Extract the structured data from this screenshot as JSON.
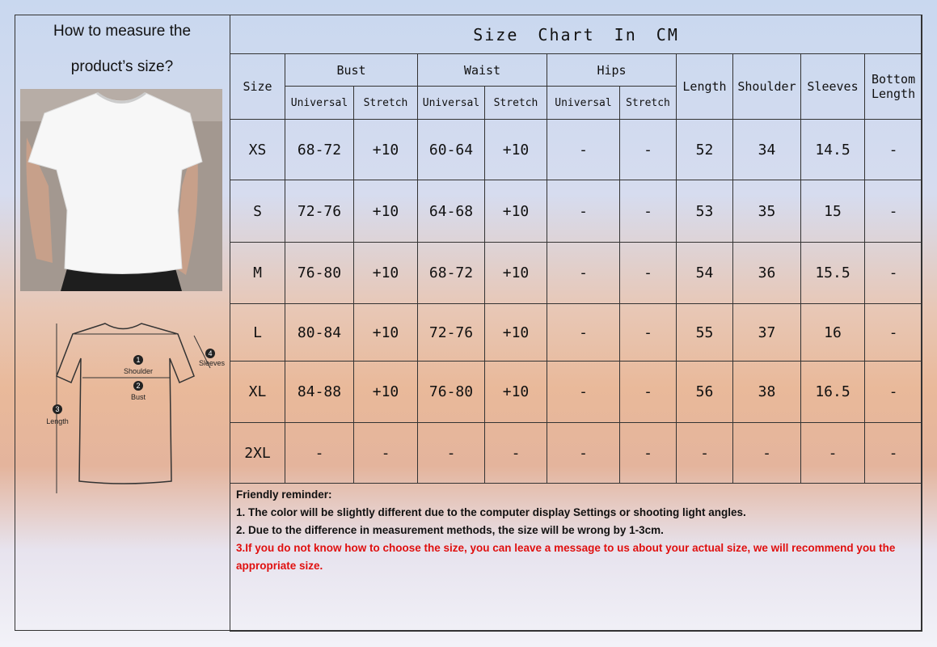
{
  "left": {
    "title_line1": "How to measure the",
    "title_line2": "product’s size?",
    "diagram": {
      "shoulder": "Shoulder",
      "bust": "Bust",
      "length": "Length",
      "sleeves": "Sleeves",
      "n1": "1",
      "n2": "2",
      "n3": "3",
      "n4": "4"
    }
  },
  "table": {
    "title": "Size Chart In CM",
    "headers": {
      "size": "Size",
      "bust": "Bust",
      "waist": "Waist",
      "hips": "Hips",
      "length": "Length",
      "shoulder": "Shoulder",
      "sleeves": "Sleeves",
      "bottom_length": "Bottom Length",
      "universal": "Universal",
      "stretch": "Stretch"
    },
    "rows": [
      [
        "XS",
        "68-72",
        "+10",
        "60-64",
        "+10",
        "-",
        "-",
        "52",
        "34",
        "14.5",
        "-"
      ],
      [
        "S",
        "72-76",
        "+10",
        "64-68",
        "+10",
        "-",
        "-",
        "53",
        "35",
        "15",
        "-"
      ],
      [
        "M",
        "76-80",
        "+10",
        "68-72",
        "+10",
        "-",
        "-",
        "54",
        "36",
        "15.5",
        "-"
      ],
      [
        "L",
        "80-84",
        "+10",
        "72-76",
        "+10",
        "-",
        "-",
        "55",
        "37",
        "16",
        "-"
      ],
      [
        "XL",
        "84-88",
        "+10",
        "76-80",
        "+10",
        "-",
        "-",
        "56",
        "38",
        "16.5",
        "-"
      ],
      [
        "2XL",
        "-",
        "-",
        "-",
        "-",
        "-",
        "-",
        "-",
        "-",
        "-",
        "-"
      ]
    ]
  },
  "notes": {
    "heading": "Friendly reminder:",
    "line1": "1. The color will be slightly different due to the computer display Settings or shooting light angles.",
    "line2": "2. Due to the difference in measurement methods, the size will be wrong by 1-3cm.",
    "line3": "3.If you do not know how to choose the size, you can leave a message to us about your actual size, we will recommend you the appropriate size.",
    "warning_color": "#e0100f"
  }
}
